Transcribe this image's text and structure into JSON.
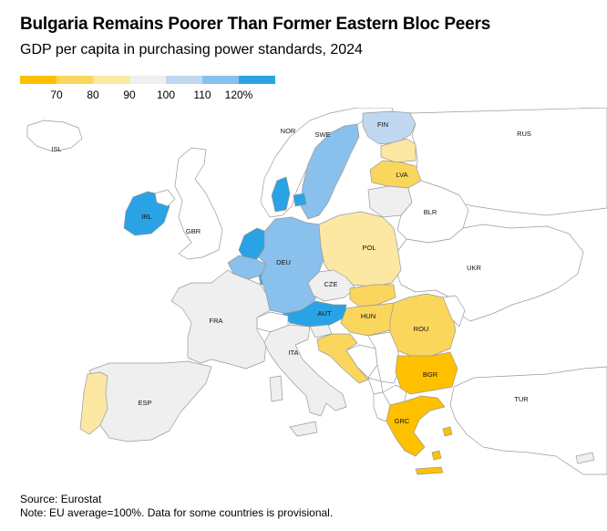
{
  "title": "Bulgaria Remains Poorer Than Former Eastern Bloc Peers",
  "subtitle": "GDP per capita in purchasing power standards, 2024",
  "legend": {
    "colors": [
      "#FFC000",
      "#FAD65D",
      "#FCE7A3",
      "#EFEFEF",
      "#BFD8EF",
      "#89C0EC",
      "#29A3E5"
    ],
    "labels": [
      "70",
      "80",
      "90",
      "100",
      "110",
      "120%"
    ]
  },
  "countries": [
    {
      "code": "ISL",
      "label": "ISL",
      "value": null
    },
    {
      "code": "NOR",
      "label": "NOR",
      "value": null
    },
    {
      "code": "SWE",
      "label": "SWE",
      "value": 112
    },
    {
      "code": "FIN",
      "label": "FIN",
      "value": 108
    },
    {
      "code": "RUS",
      "label": "RUS",
      "value": null
    },
    {
      "code": "LVA",
      "label": "LVA",
      "value": 70
    },
    {
      "code": "BLR",
      "label": "BLR",
      "value": null
    },
    {
      "code": "IRL",
      "label": "IRL",
      "value": 210
    },
    {
      "code": "GBR",
      "label": "GBR",
      "value": null
    },
    {
      "code": "POL",
      "label": "POL",
      "value": 81
    },
    {
      "code": "UKR",
      "label": "UKR",
      "value": null
    },
    {
      "code": "DEU",
      "label": "DEU",
      "value": 115
    },
    {
      "code": "CZE",
      "label": "CZE",
      "value": 92
    },
    {
      "code": "FRA",
      "label": "FRA",
      "value": 98
    },
    {
      "code": "AUT",
      "label": "AUT",
      "value": 123
    },
    {
      "code": "HUN",
      "label": "HUN",
      "value": 77
    },
    {
      "code": "ROU",
      "label": "ROU",
      "value": 78
    },
    {
      "code": "ITA",
      "label": "ITA",
      "value": 98
    },
    {
      "code": "BGR",
      "label": "BGR",
      "value": 66
    },
    {
      "code": "ESP",
      "label": "ESP",
      "value": 95
    },
    {
      "code": "TUR",
      "label": "TUR",
      "value": null
    },
    {
      "code": "GRC",
      "label": "GRC",
      "value": 67
    }
  ],
  "source": "Source: Eurostat",
  "note": "Note: EU average=100%. Data for some countries is provisional."
}
